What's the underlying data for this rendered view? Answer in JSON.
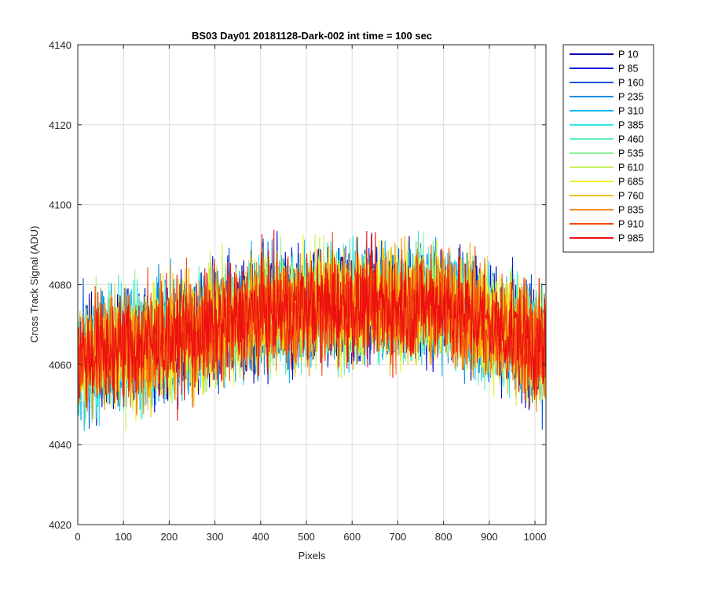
{
  "chart_data": {
    "type": "line",
    "title": "BS03 Day01 20181128-Dark-002 int time = 100 sec",
    "xlabel": "Pixels",
    "ylabel": "Cross Track Signal (ADU)",
    "xlim": [
      0,
      1024
    ],
    "ylim": [
      4020,
      4140
    ],
    "x_range": [
      1,
      1024
    ],
    "xticks": [
      0,
      100,
      200,
      300,
      400,
      500,
      600,
      700,
      800,
      900,
      1000
    ],
    "yticks": [
      4020,
      4040,
      4060,
      4080,
      4100,
      4120,
      4140
    ],
    "grid": true,
    "legend_position": "outside-top-right",
    "trend": {
      "description_points_x": [
        0,
        200,
        400,
        600,
        800,
        1024
      ],
      "center_y": [
        4062,
        4066,
        4073,
        4075,
        4075,
        4064
      ],
      "spread_y": 11
    },
    "series": [
      {
        "name": "P 10",
        "color": "#0000AA"
      },
      {
        "name": "P 85",
        "color": "#0011DD"
      },
      {
        "name": "P 160",
        "color": "#0055DD"
      },
      {
        "name": "P 235",
        "color": "#0A8FE6"
      },
      {
        "name": "P 310",
        "color": "#17B8F0"
      },
      {
        "name": "P 385",
        "color": "#2BE8E8"
      },
      {
        "name": "P 460",
        "color": "#5FF0C2"
      },
      {
        "name": "P 535",
        "color": "#8FF29A"
      },
      {
        "name": "P 610",
        "color": "#C5F25A"
      },
      {
        "name": "P 685",
        "color": "#F2F22A"
      },
      {
        "name": "P 760",
        "color": "#F2C200"
      },
      {
        "name": "P 835",
        "color": "#F28A10"
      },
      {
        "name": "P 910",
        "color": "#F24A10"
      },
      {
        "name": "P 985",
        "color": "#EE1010"
      }
    ]
  }
}
